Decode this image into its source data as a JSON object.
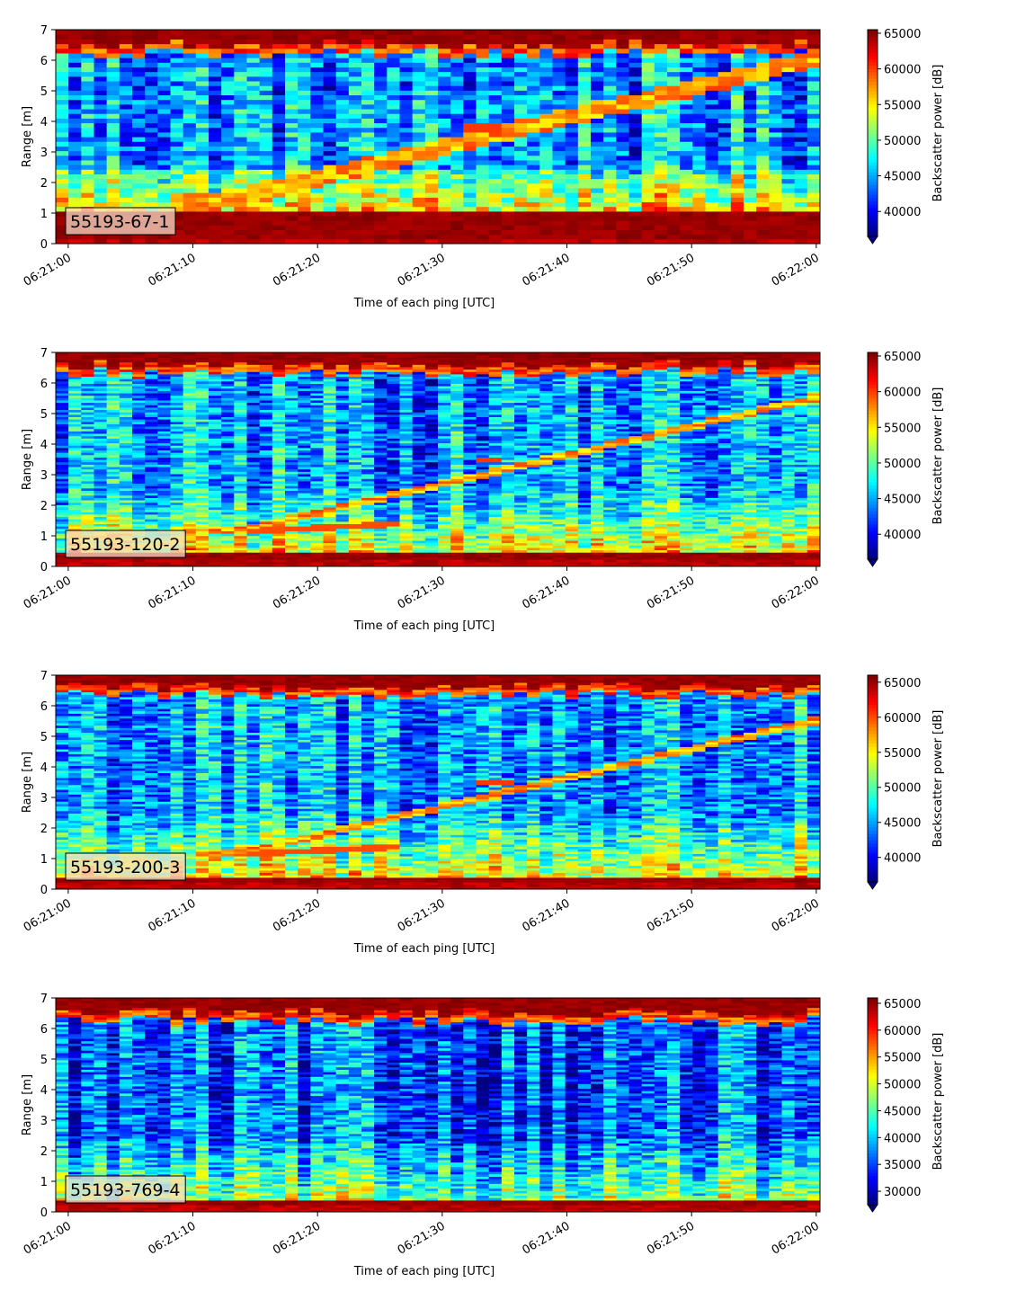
{
  "chart_data": [
    {
      "type": "heatmap",
      "title": "",
      "label": "55193-67-1",
      "xlabel": "Time of each ping [UTC]",
      "ylabel": "Range [m]",
      "xticks": [
        "06:21:00",
        "06:21:10",
        "06:21:20",
        "06:21:30",
        "06:21:40",
        "06:21:50",
        "06:22:00"
      ],
      "xlim_seconds": [
        -1,
        60.3
      ],
      "yticks": [
        0,
        1,
        2,
        3,
        4,
        5,
        6,
        7
      ],
      "ylim": [
        0,
        7
      ],
      "colorbar": {
        "label": "Backscatter power [dB]",
        "ticks": [
          40000,
          45000,
          50000,
          55000,
          60000,
          65000
        ],
        "range": [
          36500,
          65500
        ],
        "colormap": "jet",
        "extend": "min"
      },
      "features": {
        "surface_band": [
          0.2,
          1.1
        ],
        "top_band": [
          6.5,
          7.0
        ],
        "diagonal_track": {
          "start_s": 12,
          "start_range": 1.4,
          "end_s": 52,
          "end_range": 5.3
        },
        "bright_patch": {
          "time_s": [
            32,
            35
          ],
          "range": [
            3.6,
            3.9
          ]
        }
      }
    },
    {
      "type": "heatmap",
      "title": "",
      "label": "55193-120-2",
      "xlabel": "Time of each ping [UTC]",
      "ylabel": "Range [m]",
      "xticks": [
        "06:21:00",
        "06:21:10",
        "06:21:20",
        "06:21:30",
        "06:21:40",
        "06:21:50",
        "06:22:00"
      ],
      "xlim_seconds": [
        -1,
        60.3
      ],
      "yticks": [
        0,
        1,
        2,
        3,
        4,
        5,
        6,
        7
      ],
      "ylim": [
        0,
        7
      ],
      "colorbar": {
        "label": "Backscatter power [dB]",
        "ticks": [
          40000,
          45000,
          50000,
          55000,
          60000,
          65000
        ],
        "range": [
          36500,
          65500
        ],
        "colormap": "jet",
        "extend": "min"
      },
      "features": {
        "surface_band": [
          0.2,
          0.5
        ],
        "top_band": [
          6.6,
          7.0
        ],
        "diagonal_track": {
          "start_s": 14,
          "start_range": 1.2,
          "end_s": 50,
          "end_range": 4.6
        },
        "bright_patch": {
          "time_s": [
            33,
            35
          ],
          "range": [
            3.4,
            3.6
          ]
        }
      }
    },
    {
      "type": "heatmap",
      "title": "",
      "label": "55193-200-3",
      "xlabel": "Time of each ping [UTC]",
      "ylabel": "Range [m]",
      "xticks": [
        "06:21:00",
        "06:21:10",
        "06:21:20",
        "06:21:30",
        "06:21:40",
        "06:21:50",
        "06:22:00"
      ],
      "xlim_seconds": [
        -1,
        60.3
      ],
      "yticks": [
        0,
        1,
        2,
        3,
        4,
        5,
        6,
        7
      ],
      "ylim": [
        0,
        7
      ],
      "colorbar": {
        "label": "Backscatter power [dB]",
        "ticks": [
          40000,
          45000,
          50000,
          55000,
          60000,
          65000
        ],
        "range": [
          36500,
          66000
        ],
        "colormap": "jet",
        "extend": "min"
      },
      "features": {
        "surface_band": [
          0.2,
          0.4
        ],
        "top_band": [
          6.6,
          7.0
        ],
        "diagonal_track": {
          "start_s": 14,
          "start_range": 1.2,
          "end_s": 50,
          "end_range": 4.6
        },
        "bright_patch": {
          "time_s": [
            33,
            36
          ],
          "range": [
            3.4,
            3.6
          ]
        }
      }
    },
    {
      "type": "heatmap",
      "title": "",
      "label": "55193-769-4",
      "xlabel": "Time of each ping [UTC]",
      "ylabel": "Range [m]",
      "xticks": [
        "06:21:00",
        "06:21:10",
        "06:21:20",
        "06:21:30",
        "06:21:40",
        "06:21:50",
        "06:22:00"
      ],
      "xlim_seconds": [
        -1,
        60.3
      ],
      "yticks": [
        0,
        1,
        2,
        3,
        4,
        5,
        6,
        7
      ],
      "ylim": [
        0,
        7
      ],
      "colorbar": {
        "label": "Backscatter power [dB]",
        "ticks": [
          30000,
          35000,
          40000,
          45000,
          50000,
          55000,
          60000,
          65000
        ],
        "range": [
          27500,
          66000
        ],
        "colormap": "jet",
        "extend": "min"
      },
      "features": {
        "surface_band": [
          0.2,
          0.35
        ],
        "top_band": [
          6.5,
          7.0
        ],
        "diagonal_track": null,
        "bright_patch": null
      }
    }
  ]
}
